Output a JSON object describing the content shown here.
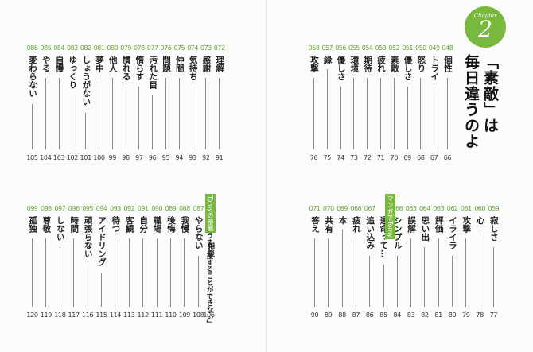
{
  "chapter": {
    "word": "Chapter",
    "number": "2",
    "title_lines": [
      "「素敵」は",
      "毎日違うのよ"
    ]
  },
  "top_left": [
    {
      "num": "086",
      "title": "変わらない",
      "page": "105"
    },
    {
      "num": "085",
      "title": "やる",
      "page": "104"
    },
    {
      "num": "084",
      "title": "自慢",
      "page": "103"
    },
    {
      "num": "083",
      "title": "ゆっくり",
      "page": "102"
    },
    {
      "num": "082",
      "title": "しょうがない",
      "page": "101"
    },
    {
      "num": "081",
      "title": "夢中",
      "page": "100"
    },
    {
      "num": "080",
      "title": "他人",
      "page": "99"
    },
    {
      "num": "079",
      "title": "慣れる",
      "page": "98"
    },
    {
      "num": "078",
      "title": "惰らす",
      "page": "97"
    },
    {
      "num": "077",
      "title": "汚れた目",
      "page": "96"
    },
    {
      "num": "076",
      "title": "問題",
      "page": "95"
    },
    {
      "num": "075",
      "title": "仲間",
      "page": "94"
    },
    {
      "num": "074",
      "title": "気持ち",
      "page": "93"
    },
    {
      "num": "073",
      "title": "感謝",
      "page": "92"
    },
    {
      "num": "072",
      "title": "理解",
      "page": "91"
    }
  ],
  "top_right": [
    {
      "num": "058",
      "title": "攻撃",
      "page": "76"
    },
    {
      "num": "057",
      "title": "縁",
      "page": "75"
    },
    {
      "num": "056",
      "title": "優しさ",
      "page": "74"
    },
    {
      "num": "055",
      "title": "環境",
      "page": "73"
    },
    {
      "num": "054",
      "title": "期待",
      "page": "72"
    },
    {
      "num": "053",
      "title": "疲れ",
      "page": "71"
    },
    {
      "num": "052",
      "title": "素敵",
      "page": "70"
    },
    {
      "num": "051",
      "title": "優しさ",
      "page": "69"
    },
    {
      "num": "050",
      "title": "怒り",
      "page": "68"
    },
    {
      "num": "049",
      "title": "トライ",
      "page": "67"
    },
    {
      "num": "048",
      "title": "個性",
      "page": "66"
    }
  ],
  "bottom_left": [
    {
      "num": "099",
      "title": "孤独",
      "page": "120"
    },
    {
      "num": "098",
      "title": "尊敬",
      "page": "119"
    },
    {
      "num": "097",
      "title": "しない",
      "page": "118"
    },
    {
      "num": "096",
      "title": "時間",
      "page": "117"
    },
    {
      "num": "095",
      "title": "頑張らない",
      "page": "116"
    },
    {
      "num": "094",
      "title": "アイドリング",
      "page": "115"
    },
    {
      "num": "093",
      "title": "待つ",
      "page": "114"
    },
    {
      "num": "092",
      "title": "客観",
      "page": "113"
    },
    {
      "num": "091",
      "title": "自分",
      "page": "112"
    },
    {
      "num": "090",
      "title": "職場",
      "page": "111"
    },
    {
      "num": "089",
      "title": "後悔",
      "page": "110"
    },
    {
      "num": "088",
      "title": "我慢",
      "page": "109"
    },
    {
      "num": "087",
      "title": "やらない",
      "page": "108"
    }
  ],
  "bottom_left_consult": {
    "tag": "Tomyの部屋",
    "side": "相談",
    "title": "「目上とうまく接することができない」",
    "page": "106"
  },
  "bottom_right": [
    {
      "num": "071",
      "title": "答え",
      "page": "90"
    },
    {
      "num": "070",
      "title": "共有",
      "page": "89"
    },
    {
      "num": "069",
      "title": "本",
      "page": "88"
    },
    {
      "num": "068",
      "title": "疲れ",
      "page": "87"
    },
    {
      "num": "067",
      "title": "追い込み",
      "page": "86"
    },
    {
      "num": "",
      "title": "運命って…",
      "page": "85"
    },
    {
      "num": "066",
      "title": "シンプル",
      "page": "84"
    },
    {
      "num": "065",
      "title": "誤解",
      "page": "83"
    },
    {
      "num": "064",
      "title": "思い出",
      "page": "82"
    },
    {
      "num": "063",
      "title": "評価",
      "page": "81"
    },
    {
      "num": "062",
      "title": "イライラ",
      "page": "80"
    },
    {
      "num": "061",
      "title": "攻撃",
      "page": "79"
    },
    {
      "num": "060",
      "title": "心",
      "page": "78"
    },
    {
      "num": "059",
      "title": "寂しさ",
      "page": "77"
    }
  ],
  "bottom_right_manga_tag": "マンガでTomy",
  "accent_color": "#78b83c"
}
